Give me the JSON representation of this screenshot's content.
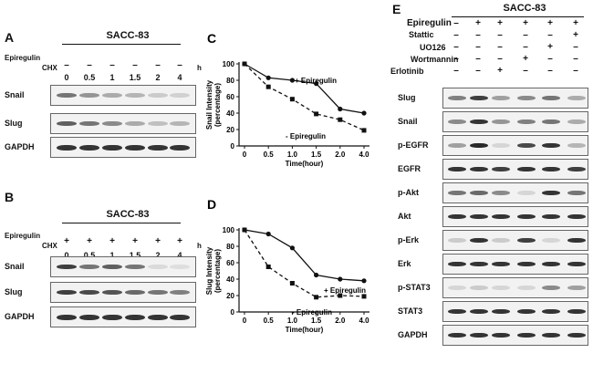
{
  "panelA": {
    "label": "A",
    "cell": "SACC-83",
    "epiregulin_label": "Epiregulin",
    "epiregulin": [
      "–",
      "–",
      "–",
      "–",
      "–",
      "–"
    ],
    "chx_label": "CHX",
    "chx": [
      "0",
      "0.5",
      "1",
      "1.5",
      "2",
      "4"
    ],
    "unit": "h",
    "rows": [
      "Snail",
      "Slug",
      "GAPDH"
    ],
    "intensity": [
      [
        0.55,
        0.4,
        0.3,
        0.25,
        0.15,
        0.12
      ],
      [
        0.65,
        0.55,
        0.45,
        0.3,
        0.2,
        0.25
      ],
      [
        0.85,
        0.85,
        0.85,
        0.85,
        0.85,
        0.85
      ]
    ]
  },
  "panelB": {
    "label": "B",
    "cell": "SACC-83",
    "epiregulin_label": "Epiregulin",
    "epiregulin": [
      "+",
      "+",
      "+",
      "+",
      "+",
      "+"
    ],
    "chx_label": "CHX",
    "chx": [
      "0",
      "0.5",
      "1",
      "1.5",
      "2",
      "4"
    ],
    "unit": "h",
    "rows": [
      "Snail",
      "Slug",
      "GAPDH"
    ],
    "intensity": [
      [
        0.8,
        0.55,
        0.65,
        0.55,
        0.08,
        0.06
      ],
      [
        0.8,
        0.75,
        0.7,
        0.6,
        0.55,
        0.5
      ],
      [
        0.85,
        0.85,
        0.85,
        0.85,
        0.85,
        0.85
      ]
    ]
  },
  "panelE": {
    "label": "E",
    "cell": "SACC-83",
    "treatments": [
      {
        "name": "Epiregulin",
        "signs": [
          "–",
          "+",
          "+",
          "+",
          "+",
          "+"
        ]
      },
      {
        "name": "Stattic",
        "signs": [
          "–",
          "–",
          "–",
          "–",
          "–",
          "+"
        ]
      },
      {
        "name": "UO126",
        "signs": [
          "–",
          "–",
          "–",
          "–",
          "+",
          "–"
        ]
      },
      {
        "name": "Wortmannin",
        "signs": [
          "–",
          "–",
          "–",
          "+",
          "–",
          "–"
        ]
      },
      {
        "name": "Erlotinib",
        "signs": [
          "–",
          "–",
          "+",
          "–",
          "–",
          "–"
        ]
      }
    ],
    "rows": [
      "Slug",
      "Snail",
      "p-EGFR",
      "EGFR",
      "p-Akt",
      "Akt",
      "p-Erk",
      "Erk",
      "p-STAT3",
      "STAT3",
      "GAPDH"
    ],
    "intensity": [
      [
        0.5,
        0.8,
        0.35,
        0.45,
        0.55,
        0.3
      ],
      [
        0.45,
        0.85,
        0.4,
        0.5,
        0.55,
        0.3
      ],
      [
        0.35,
        0.9,
        0.1,
        0.75,
        0.85,
        0.25
      ],
      [
        0.85,
        0.85,
        0.8,
        0.85,
        0.85,
        0.8
      ],
      [
        0.55,
        0.6,
        0.45,
        0.1,
        0.85,
        0.55
      ],
      [
        0.85,
        0.85,
        0.85,
        0.85,
        0.85,
        0.85
      ],
      [
        0.15,
        0.85,
        0.15,
        0.8,
        0.1,
        0.85
      ],
      [
        0.85,
        0.85,
        0.85,
        0.85,
        0.85,
        0.85
      ],
      [
        0.1,
        0.15,
        0.1,
        0.1,
        0.45,
        0.35
      ],
      [
        0.85,
        0.85,
        0.85,
        0.85,
        0.85,
        0.85
      ],
      [
        0.85,
        0.85,
        0.85,
        0.85,
        0.85,
        0.85
      ]
    ]
  },
  "chart_data": [
    {
      "panel": "C",
      "type": "line",
      "x": [
        0,
        0.5,
        1.0,
        1.5,
        2.0,
        4.0
      ],
      "x_ticks": [
        "0",
        "0.5",
        "1.0",
        "1.5",
        "2.0",
        "4.0"
      ],
      "series": [
        {
          "name": "+ Epiregulin",
          "values": [
            100,
            83,
            80,
            76,
            45,
            40
          ],
          "marker": "circle",
          "style": "solid"
        },
        {
          "name": "- Epiregulin",
          "values": [
            100,
            72,
            57,
            39,
            32,
            19
          ],
          "marker": "square",
          "style": "dashed"
        }
      ],
      "xlabel": "Time(hour)",
      "ylabel": "Snail Intensity (percentage)",
      "ylabel_lines": [
        "Snail Intensity",
        "(percentage)"
      ],
      "ylim": [
        0,
        100
      ],
      "y_ticks": [
        "0",
        "20",
        "40",
        "60",
        "80",
        "100"
      ]
    },
    {
      "panel": "D",
      "type": "line",
      "x": [
        0,
        0.5,
        1.0,
        1.5,
        2.0,
        4.0
      ],
      "x_ticks": [
        "0",
        "0.5",
        "1.0",
        "1.5",
        "2.0",
        "4.0"
      ],
      "series": [
        {
          "name": "+ Epiregulin",
          "values": [
            100,
            95,
            78,
            45,
            40,
            38
          ],
          "marker": "circle",
          "style": "solid"
        },
        {
          "name": "- Epiregulin",
          "values": [
            100,
            55,
            35,
            18,
            20,
            19
          ],
          "marker": "square",
          "style": "dashed"
        }
      ],
      "xlabel": "Time(hour)",
      "ylabel": "Slug Intensity (percentage)",
      "ylabel_lines": [
        "Slug Intensity",
        "(percentage)"
      ],
      "ylim": [
        0,
        100
      ],
      "y_ticks": [
        "0",
        "20",
        "40",
        "60",
        "80",
        "100"
      ]
    }
  ]
}
